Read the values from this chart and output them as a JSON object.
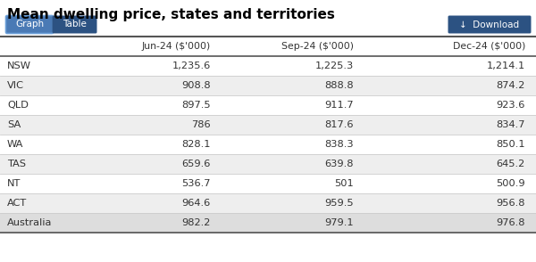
{
  "title": "Mean dwelling price, states and territories",
  "columns": [
    "",
    "Jun-24 ($'000)",
    "Sep-24 ($'000)",
    "Dec-24 ($'000)"
  ],
  "rows": [
    [
      "NSW",
      "1,235.6",
      "1,225.3",
      "1,214.1"
    ],
    [
      "VIC",
      "908.8",
      "888.8",
      "874.2"
    ],
    [
      "QLD",
      "897.5",
      "911.7",
      "923.6"
    ],
    [
      "SA",
      "786",
      "817.6",
      "834.7"
    ],
    [
      "WA",
      "828.1",
      "838.3",
      "850.1"
    ],
    [
      "TAS",
      "659.6",
      "639.8",
      "645.2"
    ],
    [
      "NT",
      "536.7",
      "501",
      "500.9"
    ],
    [
      "ACT",
      "964.6",
      "959.5",
      "956.8"
    ],
    [
      "Australia",
      "982.2",
      "979.1",
      "976.8"
    ]
  ],
  "bg_color": "#ffffff",
  "row_odd_bg": "#ffffff",
  "row_even_bg": "#eeeeee",
  "last_row_bg": "#dddddd",
  "title_color": "#000000",
  "header_text_color": "#333333",
  "cell_text_color": "#333333",
  "btn_graph_bg": "#4a7ab5",
  "btn_table_bg": "#2c5282",
  "btn_download_bg": "#2c5282",
  "btn_text_color": "#ffffff",
  "border_color": "#cccccc",
  "dark_line_color": "#555555",
  "graph_btn_border": "#6a9fd8"
}
